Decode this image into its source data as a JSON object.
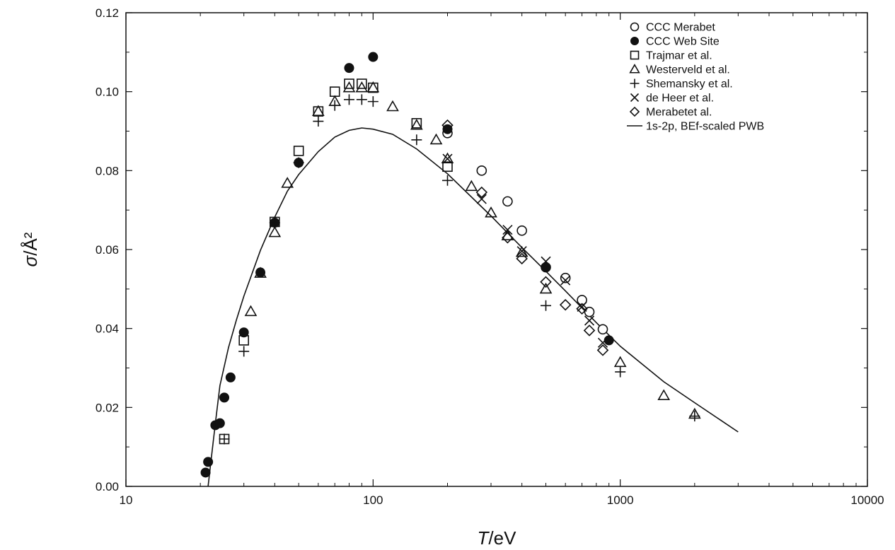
{
  "chart_data": {
    "type": "scatter",
    "xscale": "log",
    "xlim": [
      10,
      10000
    ],
    "ylim": [
      0,
      0.12
    ],
    "xlabel": {
      "symbol": "T",
      "unit": "/eV"
    },
    "ylabel": {
      "symbol": "σ",
      "unit": "/Å²"
    },
    "xticks": [
      {
        "value": 10,
        "label": "10"
      },
      {
        "value": 100,
        "label": "100"
      },
      {
        "value": 1000,
        "label": "1000"
      },
      {
        "value": 10000,
        "label": "10000"
      }
    ],
    "yticks": [
      {
        "value": 0,
        "label": "0.00"
      },
      {
        "value": 0.02,
        "label": "0.02"
      },
      {
        "value": 0.04,
        "label": "0.04"
      },
      {
        "value": 0.06,
        "label": "0.06"
      },
      {
        "value": 0.08,
        "label": "0.08"
      },
      {
        "value": 0.1,
        "label": "0.10"
      },
      {
        "value": 0.12,
        "label": "0.12"
      }
    ],
    "legend_position": "top-right",
    "series": [
      {
        "name": "CCC Merabet",
        "marker": "open-circle",
        "points": [
          [
            200,
            0.0895
          ],
          [
            275,
            0.08
          ],
          [
            350,
            0.0722
          ],
          [
            400,
            0.0648
          ],
          [
            500,
            0.0555
          ],
          [
            600,
            0.0528
          ],
          [
            700,
            0.0472
          ],
          [
            750,
            0.0442
          ],
          [
            850,
            0.0398
          ]
        ]
      },
      {
        "name": "CCC Web Site",
        "marker": "filled-circle",
        "points": [
          [
            21,
            0.0035
          ],
          [
            21.5,
            0.0062
          ],
          [
            23,
            0.0155
          ],
          [
            24,
            0.016
          ],
          [
            25,
            0.0225
          ],
          [
            26.5,
            0.0276
          ],
          [
            30,
            0.039
          ],
          [
            35,
            0.0542
          ],
          [
            40,
            0.0668
          ],
          [
            50,
            0.082
          ],
          [
            80,
            0.106
          ],
          [
            100,
            0.1088
          ],
          [
            200,
            0.0905
          ],
          [
            500,
            0.0555
          ],
          [
            900,
            0.037
          ]
        ]
      },
      {
        "name": "Trajmar et al.",
        "marker": "open-square",
        "points": [
          [
            25,
            0.012
          ],
          [
            30,
            0.037
          ],
          [
            40,
            0.067
          ],
          [
            50,
            0.085
          ],
          [
            60,
            0.095
          ],
          [
            70,
            0.1
          ],
          [
            80,
            0.102
          ],
          [
            90,
            0.102
          ],
          [
            100,
            0.101
          ],
          [
            150,
            0.092
          ],
          [
            200,
            0.081
          ]
        ]
      },
      {
        "name": "Westerveld et al.",
        "marker": "open-triangle",
        "points": [
          [
            32,
            0.0443
          ],
          [
            35,
            0.054
          ],
          [
            40,
            0.0643
          ],
          [
            45,
            0.0768
          ],
          [
            60,
            0.095
          ],
          [
            70,
            0.0975
          ],
          [
            80,
            0.101
          ],
          [
            90,
            0.101
          ],
          [
            100,
            0.101
          ],
          [
            120,
            0.0962
          ],
          [
            150,
            0.0915
          ],
          [
            180,
            0.0878
          ],
          [
            200,
            0.083
          ],
          [
            250,
            0.076
          ],
          [
            300,
            0.0693
          ],
          [
            350,
            0.0635
          ],
          [
            400,
            0.0593
          ],
          [
            500,
            0.05
          ],
          [
            1000,
            0.0314
          ],
          [
            1500,
            0.023
          ],
          [
            2000,
            0.0183
          ]
        ]
      },
      {
        "name": "Shemansky et al.",
        "marker": "plus",
        "points": [
          [
            25,
            0.012
          ],
          [
            30,
            0.0342
          ],
          [
            40,
            0.0668
          ],
          [
            50,
            0.082
          ],
          [
            60,
            0.0925
          ],
          [
            70,
            0.0965
          ],
          [
            80,
            0.098
          ],
          [
            90,
            0.098
          ],
          [
            100,
            0.0975
          ],
          [
            150,
            0.0878
          ],
          [
            200,
            0.0775
          ],
          [
            500,
            0.0458
          ],
          [
            1000,
            0.029
          ],
          [
            2000,
            0.0178
          ]
        ]
      },
      {
        "name": "de Heer et al.",
        "marker": "x",
        "points": [
          [
            200,
            0.083
          ],
          [
            275,
            0.0728
          ],
          [
            350,
            0.065
          ],
          [
            400,
            0.0596
          ],
          [
            500,
            0.057
          ],
          [
            600,
            0.0522
          ],
          [
            700,
            0.0455
          ],
          [
            750,
            0.042
          ],
          [
            850,
            0.0364
          ]
        ]
      },
      {
        "name": "Merabetet al.",
        "marker": "open-diamond",
        "points": [
          [
            200,
            0.0915
          ],
          [
            275,
            0.0745
          ],
          [
            350,
            0.063
          ],
          [
            400,
            0.0577
          ],
          [
            500,
            0.0518
          ],
          [
            600,
            0.046
          ],
          [
            700,
            0.045
          ],
          [
            750,
            0.0395
          ],
          [
            850,
            0.0345
          ]
        ]
      },
      {
        "name": "1s-2p, BEf-scaled PWB",
        "marker": "line",
        "points": [
          [
            21.5,
            0
          ],
          [
            22,
            0.0055
          ],
          [
            23,
            0.016
          ],
          [
            24,
            0.0255
          ],
          [
            26,
            0.0352
          ],
          [
            28,
            0.0422
          ],
          [
            30,
            0.0482
          ],
          [
            35,
            0.0598
          ],
          [
            40,
            0.0682
          ],
          [
            45,
            0.0748
          ],
          [
            50,
            0.079
          ],
          [
            60,
            0.0848
          ],
          [
            70,
            0.0885
          ],
          [
            80,
            0.0902
          ],
          [
            90,
            0.0908
          ],
          [
            100,
            0.0905
          ],
          [
            120,
            0.0892
          ],
          [
            150,
            0.0855
          ],
          [
            200,
            0.0792
          ],
          [
            300,
            0.0685
          ],
          [
            400,
            0.0605
          ],
          [
            500,
            0.0545
          ],
          [
            600,
            0.0495
          ],
          [
            800,
            0.0415
          ],
          [
            1000,
            0.0355
          ],
          [
            1500,
            0.0265
          ],
          [
            2000,
            0.0212
          ],
          [
            3000,
            0.0138
          ]
        ]
      }
    ]
  }
}
